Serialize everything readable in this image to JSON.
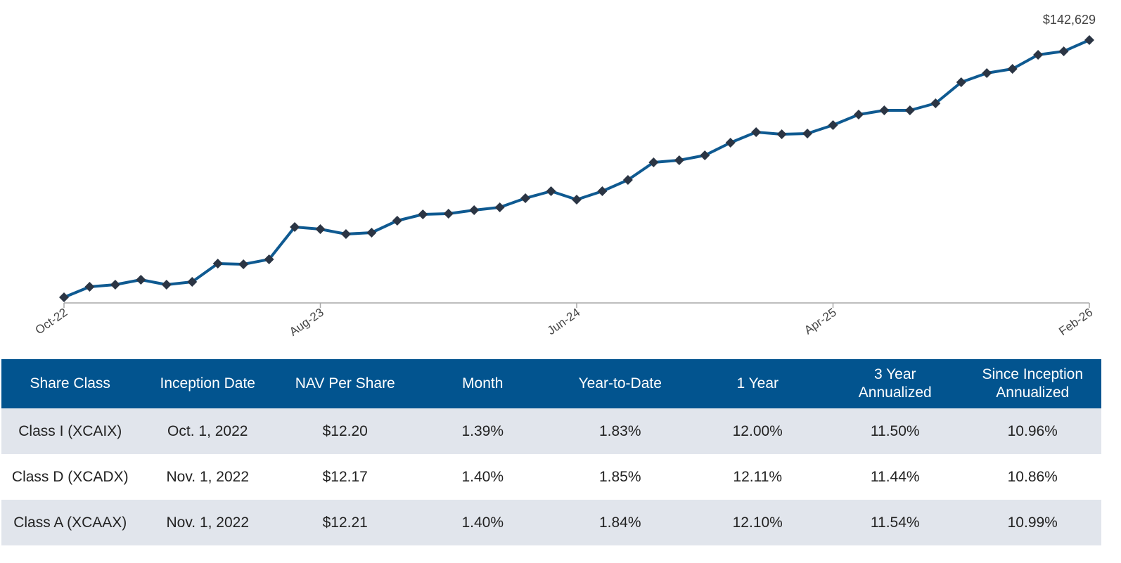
{
  "chart_data": {
    "type": "line",
    "categories": [
      "Oct-22",
      null,
      null,
      null,
      null,
      null,
      null,
      null,
      null,
      null,
      "Aug-23",
      null,
      null,
      null,
      null,
      null,
      null,
      null,
      null,
      null,
      "Jun-24",
      null,
      null,
      null,
      null,
      null,
      null,
      null,
      null,
      null,
      "Apr-25",
      null,
      null,
      null,
      null,
      null,
      null,
      null,
      null,
      null,
      "Feb-26"
    ],
    "values": [
      100000,
      101750,
      102100,
      102910,
      102100,
      102560,
      105590,
      105470,
      106290,
      111650,
      111300,
      110480,
      110720,
      112700,
      113740,
      113860,
      114440,
      114910,
      116420,
      117590,
      116190,
      117590,
      119450,
      122360,
      122710,
      123530,
      125620,
      127370,
      127020,
      127140,
      128540,
      130280,
      130980,
      130980,
      132150,
      135640,
      137150,
      137850,
      140180,
      140770,
      142629
    ],
    "value_labels": [
      null,
      null,
      null,
      null,
      null,
      null,
      null,
      null,
      null,
      null,
      null,
      null,
      null,
      null,
      null,
      null,
      null,
      null,
      null,
      null,
      null,
      null,
      null,
      null,
      null,
      null,
      null,
      null,
      null,
      null,
      null,
      null,
      null,
      null,
      null,
      null,
      null,
      null,
      null,
      null,
      "$142,629"
    ],
    "color": "#0f5a91",
    "marker_color": "#2b3544"
  },
  "table": {
    "header": [
      "Share Class",
      "Inception Date",
      "NAV Per Share",
      "Month",
      "Year-to-Date",
      "1 Year",
      "3 Year Annualized",
      "Since Inception Annualized"
    ],
    "rows": [
      [
        "Class I (XCAIX)",
        "Oct. 1, 2022",
        "$12.20",
        "1.39%",
        "1.83%",
        "12.00%",
        "11.50%",
        "10.96%"
      ],
      [
        "Class D (XCADX)",
        "Nov. 1, 2022",
        "$12.17",
        "1.40%",
        "1.85%",
        "12.11%",
        "11.44%",
        "10.86%"
      ],
      [
        "Class A (XCAAX)",
        "Nov. 1, 2022",
        "$12.21",
        "1.40%",
        "1.84%",
        "12.10%",
        "11.54%",
        "10.99%"
      ]
    ]
  }
}
